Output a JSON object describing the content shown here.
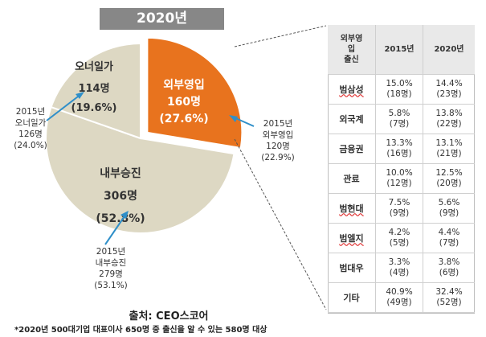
{
  "title": "2020년",
  "chart_data": {
    "type": "pie",
    "categories": [
      "외부영입",
      "내부승진",
      "오너일가"
    ],
    "series": [
      {
        "name": "2020",
        "values": [
          160,
          306,
          114
        ],
        "percents": [
          27.6,
          52.8,
          19.6
        ]
      },
      {
        "name": "2015",
        "values": [
          120,
          279,
          126
        ],
        "percents": [
          22.9,
          53.1,
          24.0
        ]
      }
    ],
    "colors": [
      "#e8731e",
      "#ddd8c3",
      "#ddd8c3"
    ],
    "exploded": "외부영입"
  },
  "pie_labels": {
    "outside": {
      "name": "외부영입",
      "count": "160명",
      "pct": "(27.6%)"
    },
    "inside": {
      "name": "내부승진",
      "count": "306명",
      "pct": "(52.8%)"
    },
    "owner": {
      "name": "오너일가",
      "count": "114명",
      "pct": "(19.6%)"
    }
  },
  "callouts": {
    "owner_2015": [
      "2015년",
      "오너일가",
      "126명",
      "(24.0%)"
    ],
    "outside_2015": [
      "2015년",
      "외부영입",
      "120명",
      "(22.9%)"
    ],
    "inside_2015": [
      "2015년",
      "내부승진",
      "279명",
      "(53.1%)"
    ]
  },
  "table": {
    "header": {
      "col1_lines": [
        "외부영",
        "입",
        "출신"
      ],
      "col2": "2015년",
      "col3": "2020년"
    },
    "rows": [
      {
        "label": "범삼성",
        "wavy": true,
        "v2015": "15.0%",
        "n2015": "(18명)",
        "v2020": "14.4%",
        "n2020": "(23명)"
      },
      {
        "label": "외국계",
        "wavy": false,
        "v2015": "5.8%",
        "n2015": "(7명)",
        "v2020": "13.8%",
        "n2020": "(22명)"
      },
      {
        "label": "금융권",
        "wavy": false,
        "v2015": "13.3%",
        "n2015": "(16명)",
        "v2020": "13.1%",
        "n2020": "(21명)"
      },
      {
        "label": "관료",
        "wavy": false,
        "v2015": "10.0%",
        "n2015": "(12명)",
        "v2020": "12.5%",
        "n2020": "(20명)"
      },
      {
        "label": "범현대",
        "wavy": true,
        "v2015": "7.5%",
        "n2015": "(9명)",
        "v2020": "5.6%",
        "n2020": "(9명)"
      },
      {
        "label": "범엘지",
        "wavy": true,
        "v2015": "4.2%",
        "n2015": "(5명)",
        "v2020": "4.4%",
        "n2020": "(7명)"
      },
      {
        "label": "범대우",
        "wavy": false,
        "v2015": "3.3%",
        "n2015": "(4명)",
        "v2020": "3.8%",
        "n2020": "(6명)"
      },
      {
        "label": "기타",
        "wavy": false,
        "v2015": "40.9%",
        "n2015": "(49명)",
        "v2020": "32.4%",
        "n2020": "(52명)"
      }
    ]
  },
  "source": "출처: CEO스코어",
  "footnote": "*2020년 500대기업 대표이사 650명 중 출신을 알 수 있는 580명 대상"
}
